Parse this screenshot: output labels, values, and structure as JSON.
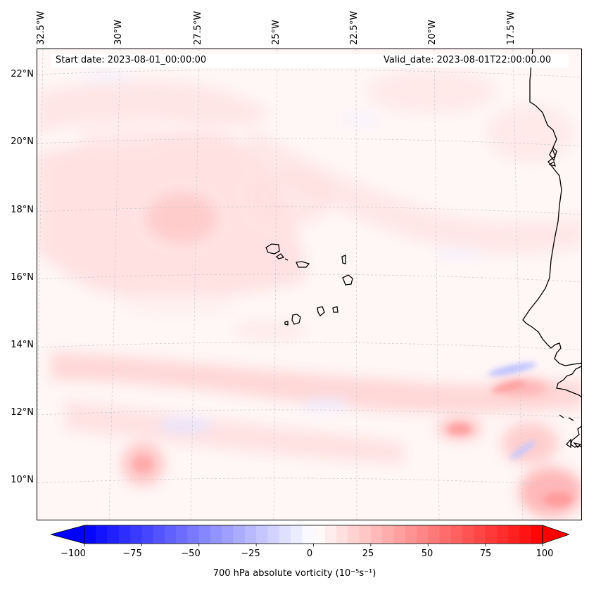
{
  "map": {
    "title_start": "Start date: 2023-08-01_00:00:00",
    "title_valid": "Valid_date: 2023-08-01T22:00:00.00",
    "lon_labels": [
      "32.5°W",
      "30°W",
      "27.5°W",
      "25°W",
      "22.5°W",
      "20°W",
      "17.5°W"
    ],
    "lat_labels": [
      "22°N",
      "20°N",
      "18°N",
      "16°N",
      "14°N",
      "12°N",
      "10°N"
    ],
    "colors": {
      "coast": "#000000",
      "grid": "#c8c8c8",
      "neg": "#0000ff",
      "pos": "#ff0000",
      "bg": "#fff6f6"
    }
  },
  "colorbar": {
    "ticks": [
      "−100",
      "−75",
      "−50",
      "−25",
      "0",
      "25",
      "50",
      "75",
      "100"
    ],
    "label": "700 hPa absolute vorticity (10⁻⁵s⁻¹)",
    "min": -100,
    "max": 100
  }
}
